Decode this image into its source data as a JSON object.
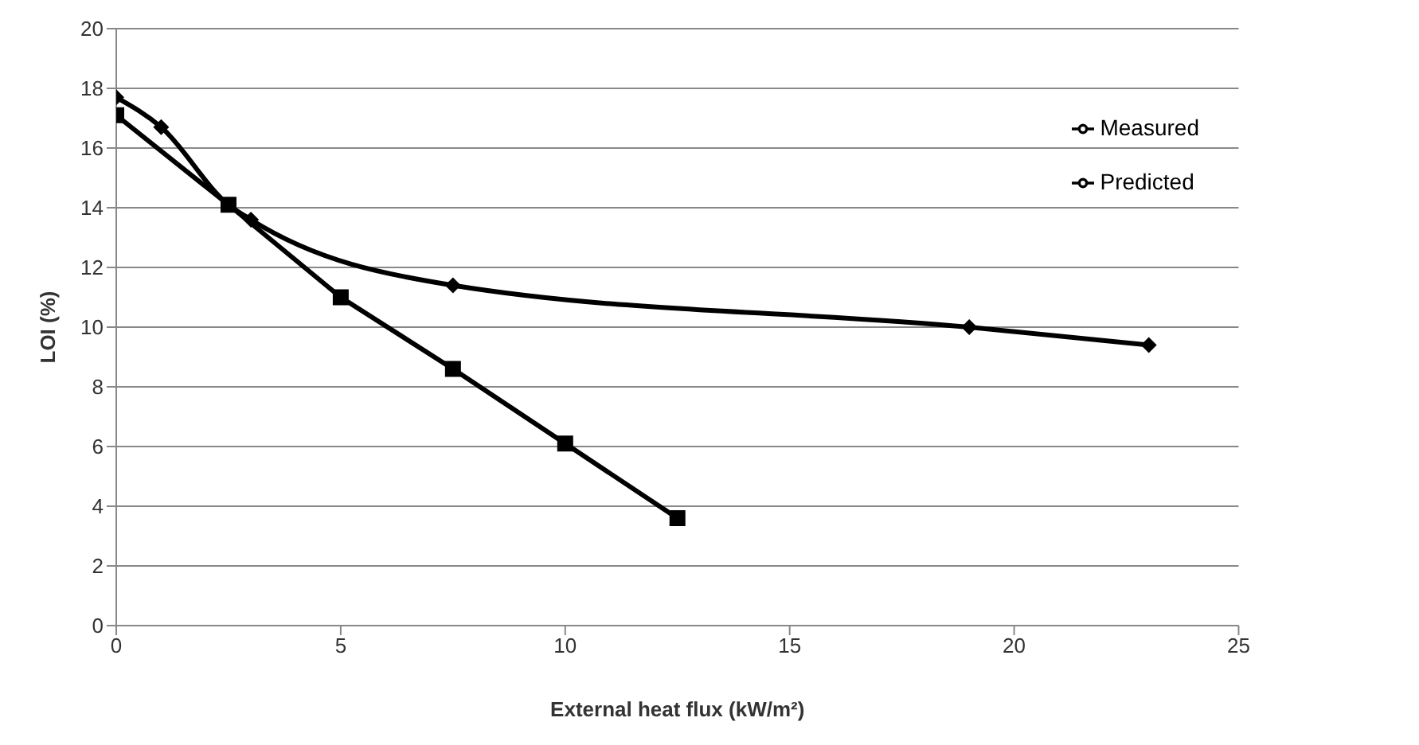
{
  "chart_data": {
    "type": "line",
    "xlabel": "External heat flux (kW/m²)",
    "ylabel": "LOI (%)",
    "xlim": [
      0,
      25
    ],
    "xticks": [
      0,
      5,
      10,
      15,
      20,
      25
    ],
    "ylim": [
      0,
      20
    ],
    "yticks": [
      0,
      2,
      4,
      6,
      8,
      10,
      12,
      14,
      16,
      18,
      20
    ],
    "grid": "y",
    "legend": "top right",
    "series": [
      {
        "name": "Measured",
        "color": "#000000",
        "marker": "diamond",
        "x": [
          0,
          1,
          2.5,
          3,
          7.5,
          19,
          23
        ],
        "values": [
          17.7,
          16.7,
          14.1,
          13.6,
          11.4,
          10,
          9.4
        ]
      },
      {
        "name": "Predicted",
        "color": "#000000",
        "marker": "square",
        "x": [
          0,
          2.5,
          5,
          7.5,
          10,
          12.5
        ],
        "values": [
          17.1,
          14.1,
          11,
          8.6,
          6.1,
          3.6
        ]
      }
    ]
  }
}
